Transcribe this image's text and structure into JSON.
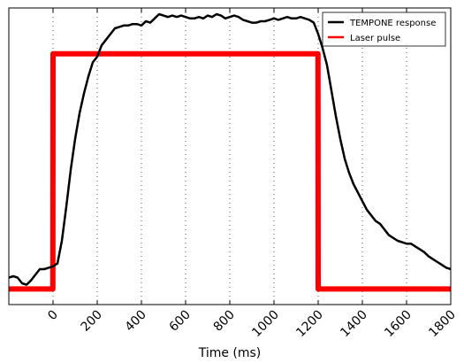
{
  "chart_data": {
    "type": "line",
    "title": "",
    "xlabel": "Time (ms)",
    "ylabel": "",
    "xlim": [
      -200,
      1800
    ],
    "ylim": [
      0,
      1
    ],
    "x_ticks": [
      0,
      200,
      400,
      600,
      800,
      1000,
      1200,
      1400,
      1600,
      1800
    ],
    "x_tick_labels": [
      "0",
      "200",
      "400",
      "600",
      "800",
      "1000",
      "1200",
      "1400",
      "1600",
      "1800"
    ],
    "y_ticks_shown": false,
    "grid": "vertical dotted at x ticks",
    "legend": {
      "placement": "top-right",
      "entries": [
        "TEMPONE response",
        "Laser pulse"
      ]
    },
    "series": [
      {
        "name": "TEMPONE response",
        "color": "#000000",
        "x": [
          -200,
          -180,
          -160,
          -140,
          -120,
          -100,
          -80,
          -60,
          -40,
          -20,
          0,
          20,
          40,
          60,
          80,
          100,
          120,
          140,
          160,
          180,
          200,
          220,
          240,
          260,
          280,
          300,
          320,
          340,
          360,
          380,
          400,
          420,
          440,
          460,
          480,
          500,
          520,
          540,
          560,
          580,
          600,
          620,
          640,
          660,
          680,
          700,
          720,
          740,
          760,
          780,
          800,
          820,
          840,
          860,
          880,
          900,
          920,
          940,
          960,
          980,
          1000,
          1020,
          1040,
          1060,
          1080,
          1100,
          1120,
          1140,
          1160,
          1180,
          1200,
          1220,
          1240,
          1260,
          1280,
          1300,
          1320,
          1340,
          1360,
          1380,
          1400,
          1420,
          1440,
          1460,
          1480,
          1500,
          1520,
          1540,
          1560,
          1580,
          1600,
          1620,
          1640,
          1660,
          1680,
          1700,
          1720,
          1740,
          1760,
          1780,
          1800
        ],
        "y": [
          0.07,
          0.075,
          0.07,
          0.05,
          0.045,
          0.06,
          0.08,
          0.1,
          0.1,
          0.105,
          0.11,
          0.12,
          0.2,
          0.32,
          0.45,
          0.56,
          0.65,
          0.72,
          0.78,
          0.83,
          0.85,
          0.89,
          0.91,
          0.93,
          0.95,
          0.955,
          0.96,
          0.96,
          0.965,
          0.965,
          0.96,
          0.975,
          0.97,
          0.985,
          1.0,
          0.995,
          0.99,
          0.995,
          0.99,
          0.995,
          0.99,
          0.985,
          0.985,
          0.99,
          0.985,
          0.995,
          0.99,
          1.0,
          0.995,
          0.985,
          0.99,
          0.995,
          0.99,
          0.98,
          0.975,
          0.97,
          0.97,
          0.975,
          0.975,
          0.98,
          0.985,
          0.98,
          0.985,
          0.99,
          0.985,
          0.985,
          0.99,
          0.985,
          0.98,
          0.97,
          0.93,
          0.88,
          0.82,
          0.73,
          0.64,
          0.56,
          0.49,
          0.44,
          0.4,
          0.37,
          0.34,
          0.31,
          0.29,
          0.27,
          0.26,
          0.24,
          0.22,
          0.21,
          0.2,
          0.195,
          0.19,
          0.19,
          0.18,
          0.17,
          0.16,
          0.145,
          0.135,
          0.125,
          0.115,
          0.105,
          0.1
        ]
      },
      {
        "name": "Laser pulse",
        "color": "#ff0000",
        "x": [
          -200,
          -1,
          0,
          1199,
          1200,
          1800
        ],
        "y": [
          0.03,
          0.03,
          0.86,
          0.86,
          0.03,
          0.03
        ]
      }
    ]
  }
}
